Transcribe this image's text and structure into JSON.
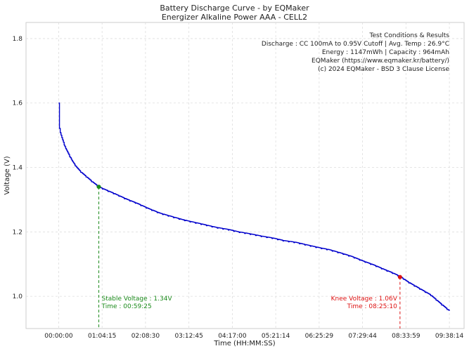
{
  "chart_data": {
    "type": "line",
    "title": "Battery Discharge Curve - by EQMaker",
    "subtitle": "Energizer Alkaline Power AAA - CELL2",
    "xlabel": "Time (HH:MM:SS)",
    "ylabel": "Voltage (V)",
    "x_units": "seconds",
    "xlim": [
      -2900,
      36000
    ],
    "ylim": [
      0.9,
      1.85
    ],
    "grid": true,
    "x_ticks": [
      {
        "value": 0,
        "label": "00:00:00"
      },
      {
        "value": 3855,
        "label": "01:04:15"
      },
      {
        "value": 7710,
        "label": "02:08:30"
      },
      {
        "value": 11565,
        "label": "03:12:45"
      },
      {
        "value": 15420,
        "label": "04:17:00"
      },
      {
        "value": 19274,
        "label": "05:21:14"
      },
      {
        "value": 23129,
        "label": "06:25:29"
      },
      {
        "value": 26984,
        "label": "07:29:44"
      },
      {
        "value": 30839,
        "label": "08:33:59"
      },
      {
        "value": 34694,
        "label": "09:38:14"
      }
    ],
    "y_ticks": [
      {
        "value": 1.0,
        "label": "1.0"
      },
      {
        "value": 1.2,
        "label": "1.2"
      },
      {
        "value": 1.4,
        "label": "1.4"
      },
      {
        "value": 1.6,
        "label": "1.6"
      },
      {
        "value": 1.8,
        "label": "1.8"
      }
    ],
    "series": [
      {
        "name": "Voltage",
        "color": "#0000cc",
        "x": [
          0,
          30,
          120,
          300,
          600,
          900,
          1200,
          1600,
          2000,
          2500,
          3000,
          3565,
          4000,
          5000,
          6000,
          7000,
          8000,
          9000,
          10000,
          11000,
          12000,
          13000,
          14000,
          15000,
          16000,
          17000,
          18000,
          19000,
          20000,
          21000,
          22000,
          23000,
          24000,
          25000,
          26000,
          27000,
          28000,
          29000,
          29500,
          30310,
          31000,
          32000,
          33000,
          34000,
          34694
        ],
        "y": [
          1.6,
          1.53,
          1.51,
          1.49,
          1.46,
          1.44,
          1.42,
          1.4,
          1.385,
          1.37,
          1.355,
          1.34,
          1.333,
          1.318,
          1.302,
          1.288,
          1.272,
          1.258,
          1.248,
          1.238,
          1.23,
          1.222,
          1.214,
          1.208,
          1.2,
          1.194,
          1.187,
          1.181,
          1.173,
          1.168,
          1.16,
          1.152,
          1.145,
          1.135,
          1.124,
          1.11,
          1.097,
          1.082,
          1.075,
          1.062,
          1.045,
          1.025,
          1.005,
          0.975,
          0.955
        ]
      }
    ],
    "markers": [
      {
        "name": "stable",
        "x": 3565,
        "y": 1.34,
        "color": "#1a8a1a"
      },
      {
        "name": "knee",
        "x": 30310,
        "y": 1.06,
        "color": "#dd1111"
      }
    ],
    "annotations": {
      "stable": {
        "line1": "Stable Voltage : 1.34V",
        "line2": "Time : 00:59:25",
        "color": "#1a8a1a"
      },
      "knee": {
        "line1": "Knee Voltage : 1.06V",
        "line2": "Time : 08:25:10",
        "color": "#dd1111"
      }
    },
    "info_box": [
      "Test Conditions & Results",
      "Discharge : CC 100mA to 0.95V Cutoff | Avg. Temp : 26.9°C",
      "Energy : 1147mWh | Capacity : 964mAh",
      "EQMaker (https://www.eqmaker.kr/battery/)",
      "(c) 2024 EQMaker - BSD 3 Clause License"
    ]
  }
}
